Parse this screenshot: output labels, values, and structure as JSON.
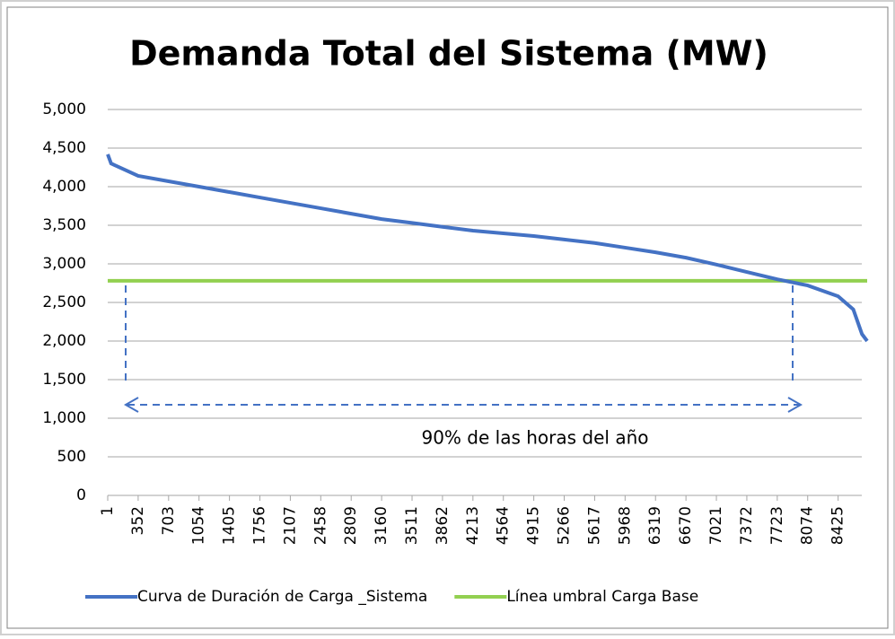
{
  "chart_data": {
    "type": "line",
    "title": "Demanda Total del Sistema (MW)",
    "annotation": "90% de las horas del año",
    "xlim": [
      1,
      8760
    ],
    "xticks": [
      1,
      352,
      703,
      1054,
      1405,
      1756,
      2107,
      2458,
      2809,
      3160,
      3511,
      3862,
      4213,
      4564,
      4915,
      5266,
      5617,
      5968,
      6319,
      6670,
      7021,
      7372,
      7723,
      8074,
      8425
    ],
    "ylim": [
      0,
      5000
    ],
    "yticks": [
      0,
      500,
      {
        "value": 1000,
        "label": "1,000"
      },
      {
        "value": 1500,
        "label": "1,500"
      },
      {
        "value": 2000,
        "label": "2,000"
      },
      {
        "value": 2500,
        "label": "2,500"
      },
      {
        "value": 3000,
        "label": "3,000"
      },
      {
        "value": 3500,
        "label": "3,500"
      },
      {
        "value": 4000,
        "label": "4,000"
      },
      {
        "value": 4500,
        "label": "4,500"
      },
      {
        "value": 5000,
        "label": "5,000"
      }
    ],
    "grid": true,
    "legend": "bottom",
    "series": [
      {
        "name": "Curva de Duración de Carga _Sistema",
        "color": "#4472c4",
        "x": [
          1,
          40,
          352,
          703,
          1054,
          1405,
          1756,
          2107,
          2458,
          2809,
          3160,
          3511,
          3862,
          4213,
          4564,
          4915,
          5266,
          5617,
          5968,
          6319,
          6670,
          7021,
          7372,
          7723,
          8074,
          8425,
          8600,
          8700,
          8760
        ],
        "values": [
          4420,
          4300,
          4140,
          4070,
          4000,
          3930,
          3860,
          3790,
          3720,
          3650,
          3580,
          3530,
          3480,
          3430,
          3395,
          3360,
          3315,
          3270,
          3210,
          3150,
          3080,
          2990,
          2895,
          2800,
          2720,
          2580,
          2410,
          2090,
          2000
        ]
      },
      {
        "name": "Línea umbral Carga Base",
        "color": "#92d050",
        "x": [
          1,
          8760
        ],
        "values": [
          2780,
          2780
        ]
      }
    ]
  }
}
